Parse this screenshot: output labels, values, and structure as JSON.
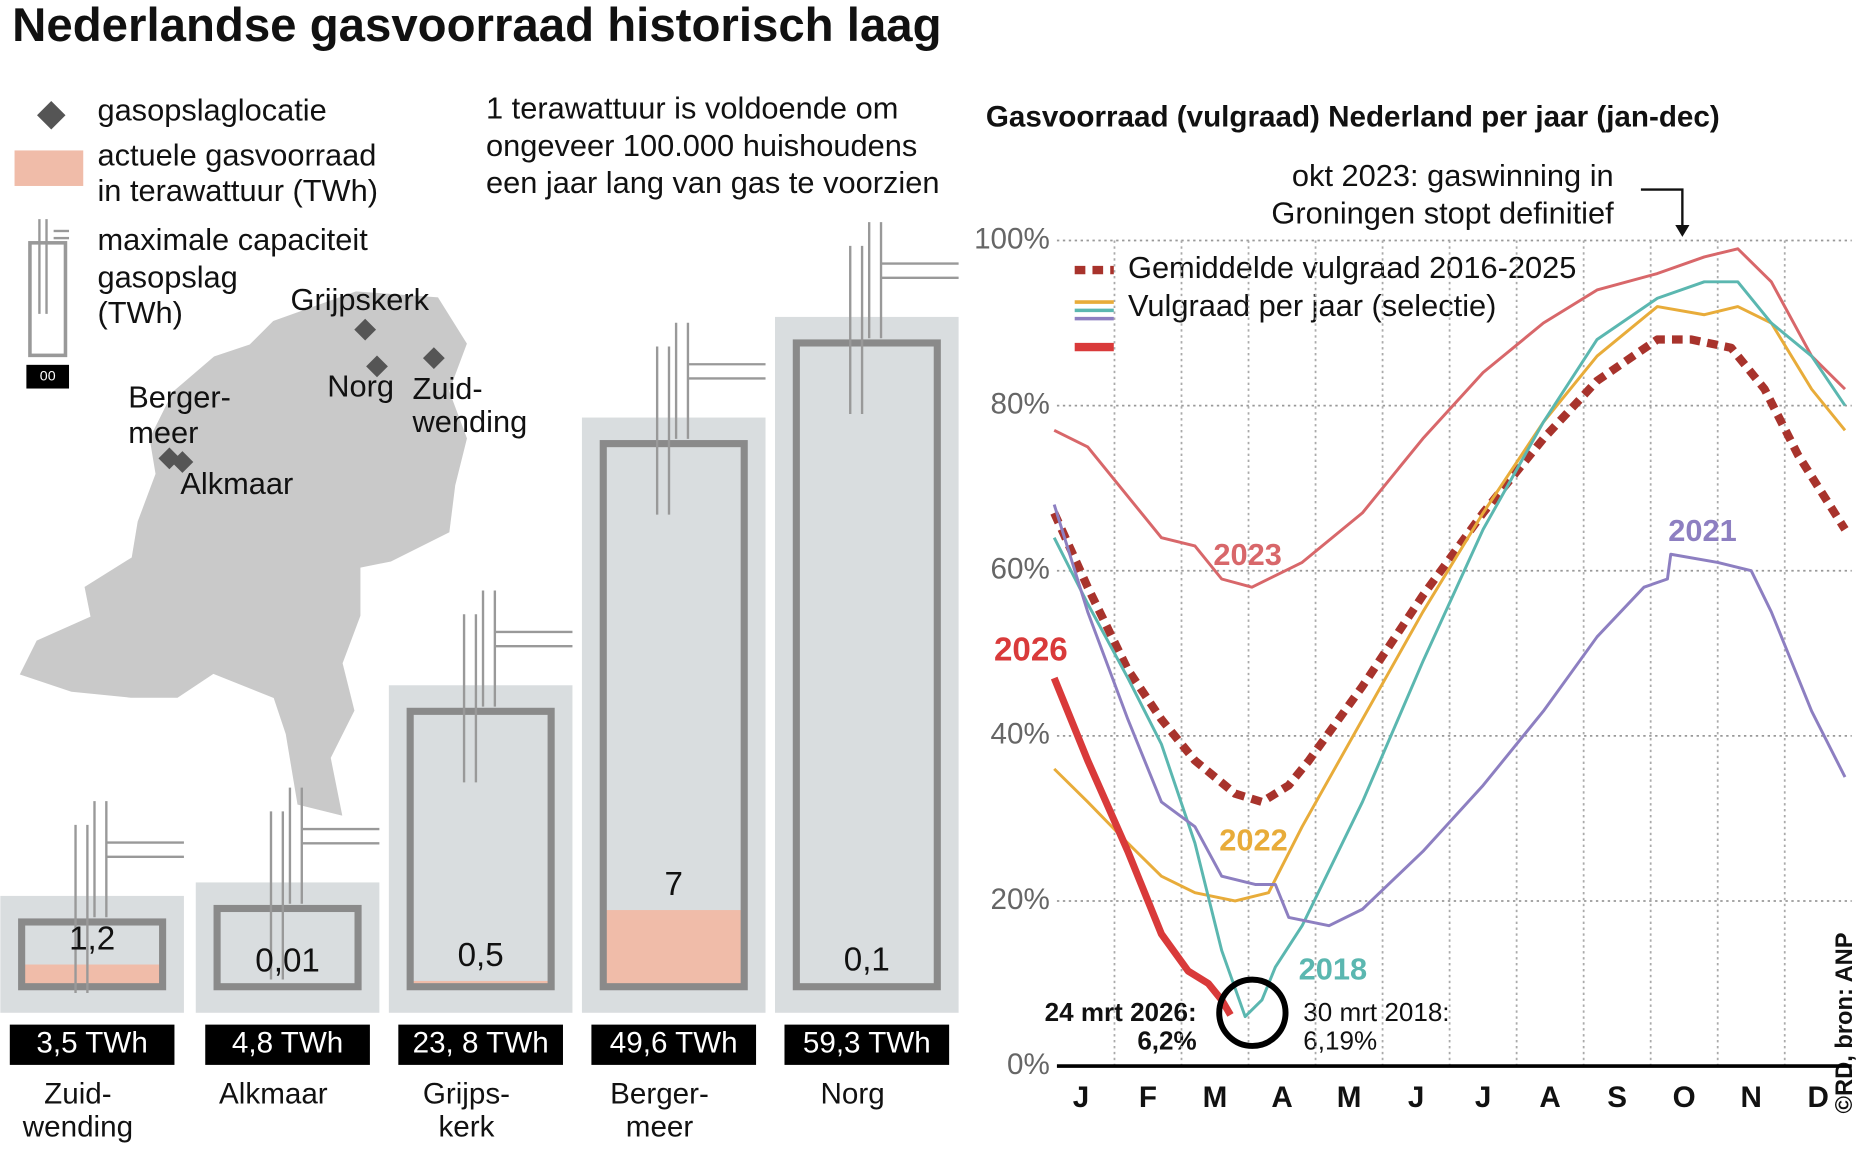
{
  "title": "Nederlandse gasvoorraad historisch laag",
  "legend": {
    "location": "gasopslaglocatie",
    "capacity_sample": "00"
  },
  "note": [
    "1 terawattuur is voldoende om",
    "ongeveer 100.000 huishoudens",
    "een jaar lang van gas te voorzien"
  ],
  "map_labels": {
    "grijpskerk": [
      "Grijpskerk"
    ],
    "norg": [
      "Norg"
    ],
    "zuidwending": [
      "Zuid-",
      "wending"
    ],
    "bergermeer": [
      "Berger-",
      "meer"
    ],
    "alkmaar": [
      "Alkmaar"
    ]
  },
  "source": "©RD, bron: ANP",
  "chart_data": [
    {
      "type": "storage",
      "categories": [
        [
          "Zuid-",
          "wending"
        ],
        [
          "Alkmaar"
        ],
        [
          "Grijps-",
          "kerk"
        ],
        [
          "Berger-",
          "meer"
        ],
        [
          "Norg"
        ]
      ],
      "series": [
        {
          "name": [
            "actuele gasvoorraad",
            "in terawattuur (TWh)"
          ],
          "color": "#f0bca9",
          "values": [
            1.2,
            0.01,
            0.5,
            7,
            0.1
          ],
          "value_labels": [
            "1,2",
            "0,01",
            "0,5",
            "7",
            "0,1"
          ]
        },
        {
          "name": [
            "maximale capaciteit",
            "gasopslag",
            "(TWh)"
          ],
          "color": "#d9dddf",
          "values": [
            3.5,
            4.8,
            23.8,
            49.6,
            59.3
          ],
          "value_labels": [
            "3,5 TWh",
            "4,8 TWh",
            "23, 8 TWh",
            "49,6 TWh",
            "59,3 TWh"
          ]
        }
      ]
    },
    {
      "type": "line",
      "title": "Gasvoorraad (vulgraad) Nederland per jaar (jan-dec)",
      "categories": [
        "J",
        "F",
        "M",
        "A",
        "M",
        "J",
        "J",
        "A",
        "S",
        "O",
        "N",
        "D"
      ],
      "xlim": [
        0,
        12
      ],
      "ylim": [
        0,
        100
      ],
      "yticks": [
        {
          "value": 0,
          "label": "0%"
        },
        {
          "value": 20,
          "label": "20%"
        },
        {
          "value": 40,
          "label": "40%"
        },
        {
          "value": 60,
          "label": "60%"
        },
        {
          "value": 80,
          "label": "80%"
        },
        {
          "value": 100,
          "label": "100%"
        }
      ],
      "grid": true,
      "legend_label": "Vulgraad per jaar (selectie)",
      "series": [
        {
          "name": "Gemiddelde vulgraad 2016-2025",
          "color": "#a8332c",
          "style": "dotted",
          "x": [
            0.1,
            0.6,
            1.2,
            1.7,
            2.2,
            2.8,
            3.2,
            3.6,
            3.9,
            4.7,
            5.6,
            6.5,
            7.4,
            8.2,
            9.1,
            9.6,
            10.2,
            10.7,
            11.2,
            11.9
          ],
          "values": [
            67,
            58,
            48,
            42,
            37,
            33,
            32,
            34,
            37,
            46,
            57,
            67,
            76,
            83,
            88,
            88,
            87,
            82,
            74,
            65
          ]
        },
        {
          "name": "2023",
          "color": "#d8676a",
          "x": [
            0.1,
            0.6,
            1.2,
            1.7,
            2.2,
            2.6,
            3.05,
            3.8,
            4.7,
            5.6,
            6.5,
            7.4,
            8.2,
            9.1,
            9.8,
            10.3,
            10.8,
            11.4,
            11.9
          ],
          "values": [
            77,
            75,
            69,
            64,
            63,
            59,
            58,
            61,
            67,
            76,
            84,
            90,
            94,
            96,
            98,
            99,
            95,
            86,
            82
          ]
        },
        {
          "name": "2022",
          "color": "#e8ac3a",
          "x": [
            0.1,
            0.6,
            1.2,
            1.7,
            2.2,
            2.8,
            3.3,
            3.8,
            4.7,
            5.6,
            6.5,
            7.4,
            8.2,
            9.1,
            9.8,
            10.3,
            10.8,
            11.4,
            11.9
          ],
          "values": [
            36,
            32,
            27,
            23,
            21,
            20,
            21,
            29,
            42,
            55,
            67,
            78,
            86,
            92,
            91,
            92,
            90,
            82,
            77
          ]
        },
        {
          "name": "2018",
          "color": "#5bb7b0",
          "x": [
            0.1,
            0.6,
            1.2,
            1.7,
            2.2,
            2.6,
            2.95,
            3.2,
            3.4,
            3.8,
            4.7,
            5.6,
            6.5,
            7.4,
            8.2,
            9.1,
            9.8,
            10.3,
            10.8,
            11.4,
            11.9
          ],
          "values": [
            64,
            56,
            47,
            39,
            27,
            14,
            6,
            8,
            12,
            17,
            32,
            49,
            65,
            78,
            88,
            93,
            95,
            95,
            90,
            86,
            80
          ]
        },
        {
          "name": "2021",
          "color": "#8d7fc1",
          "x": [
            0.1,
            0.6,
            1.2,
            1.7,
            2.2,
            2.6,
            3.1,
            3.4,
            3.6,
            4.2,
            4.7,
            5.6,
            6.5,
            7.4,
            8.2,
            8.9,
            9.25,
            9.3,
            10.0,
            10.5,
            10.8,
            11.4,
            11.9
          ],
          "values": [
            68,
            55,
            42,
            32,
            29,
            23,
            22,
            22,
            18,
            17,
            19,
            26,
            34,
            43,
            52,
            58,
            59,
            62,
            61,
            60,
            55,
            43,
            35
          ]
        },
        {
          "name": "2026",
          "color": "#d93a3a",
          "style": "thick",
          "x": [
            0.1,
            0.6,
            1.2,
            1.7,
            2.1,
            2.4,
            2.6,
            2.73
          ],
          "values": [
            47,
            37,
            26,
            16,
            11.5,
            10,
            8,
            6.2
          ]
        }
      ],
      "annotations": {
        "groningen": [
          "okt 2023: gaswinning in",
          "Groningen stopt definitief"
        ],
        "now": [
          "24 mrt 2026:",
          "6,2%"
        ],
        "low2018": [
          "30 mrt 2018:",
          "6,19%"
        ]
      }
    }
  ]
}
